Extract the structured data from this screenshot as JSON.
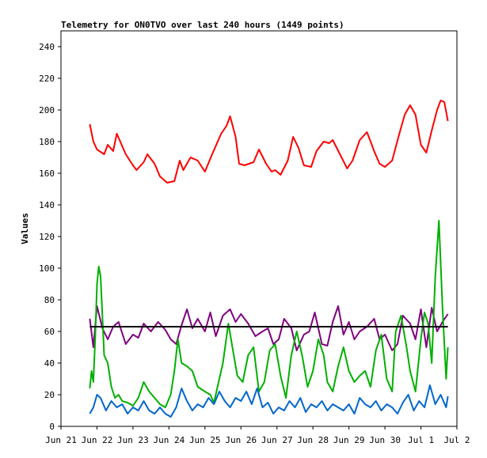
{
  "chart_data": {
    "type": "line",
    "title": "Telemetry for ON0TVO over last 240 hours (1449 points)",
    "xlabel": "",
    "ylabel": "Values",
    "ylim": [
      0,
      250
    ],
    "yticks": [
      0,
      20,
      40,
      60,
      80,
      100,
      120,
      140,
      160,
      180,
      200,
      220,
      240
    ],
    "xlim": [
      "2024-06-21",
      "2024-07-02"
    ],
    "xticks": [
      "Jun 21",
      "Jun 22",
      "Jun 23",
      "Jun 24",
      "Jun 25",
      "Jun 26",
      "Jun 27",
      "Jun 28",
      "Jun 29",
      "Jun 30",
      "Jul 1",
      "Jul 2"
    ],
    "grid": false,
    "legend": "none",
    "series": [
      {
        "color": "#ff0000",
        "x": [
          21.8,
          21.9,
          22.0,
          22.2,
          22.3,
          22.45,
          22.55,
          22.8,
          23.0,
          23.1,
          23.3,
          23.4,
          23.6,
          23.75,
          23.95,
          24.15,
          24.3,
          24.4,
          24.6,
          24.8,
          25.0,
          25.2,
          25.45,
          25.6,
          25.7,
          25.85,
          25.95,
          26.1,
          26.35,
          26.5,
          26.7,
          26.85,
          26.95,
          27.1,
          27.3,
          27.45,
          27.6,
          27.75,
          27.95,
          28.1,
          28.3,
          28.45,
          28.55,
          28.75,
          28.95,
          29.1,
          29.3,
          29.5,
          29.7,
          29.85,
          30.0,
          30.2,
          30.4,
          30.55,
          30.7,
          30.85,
          31.0,
          31.15,
          31.3,
          31.45,
          31.55,
          31.65,
          31.75
        ],
        "y": [
          191,
          180,
          175,
          172,
          178,
          174,
          185,
          172,
          165,
          162,
          167,
          172,
          166,
          158,
          154,
          155,
          168,
          162,
          170,
          168,
          161,
          172,
          185,
          190,
          196,
          183,
          166,
          165,
          167,
          175,
          166,
          161,
          162,
          159,
          168,
          183,
          176,
          165,
          164,
          174,
          180,
          179,
          181,
          172,
          163,
          168,
          181,
          186,
          174,
          166,
          164,
          168,
          185,
          197,
          203,
          197,
          178,
          173,
          187,
          200,
          206,
          205,
          193
        ]
      },
      {
        "color": "#800080",
        "x": [
          21.8,
          21.9,
          22.0,
          22.15,
          22.3,
          22.45,
          22.6,
          22.8,
          23.0,
          23.15,
          23.3,
          23.5,
          23.7,
          23.9,
          24.05,
          24.2,
          24.35,
          24.5,
          24.65,
          24.8,
          25.0,
          25.15,
          25.3,
          25.5,
          25.7,
          25.85,
          26.0,
          26.2,
          26.4,
          26.6,
          26.75,
          26.9,
          27.05,
          27.2,
          27.4,
          27.55,
          27.75,
          27.9,
          28.05,
          28.25,
          28.4,
          28.55,
          28.7,
          28.85,
          29.0,
          29.15,
          29.3,
          29.5,
          29.7,
          29.85,
          30.0,
          30.2,
          30.35,
          30.5,
          30.7,
          30.85,
          31.0,
          31.15,
          31.3,
          31.45,
          31.6,
          31.75
        ],
        "y": [
          68,
          50,
          76,
          62,
          55,
          63,
          66,
          52,
          58,
          56,
          65,
          60,
          66,
          61,
          55,
          52,
          64,
          74,
          62,
          68,
          60,
          72,
          57,
          70,
          74,
          66,
          71,
          65,
          57,
          60,
          62,
          52,
          55,
          68,
          62,
          48,
          58,
          60,
          72,
          52,
          51,
          66,
          76,
          58,
          66,
          55,
          60,
          63,
          68,
          55,
          58,
          48,
          52,
          70,
          65,
          55,
          74,
          50,
          75,
          60,
          66,
          71
        ]
      },
      {
        "color": "#00b000",
        "x": [
          21.8,
          21.85,
          21.9,
          21.95,
          22.0,
          22.05,
          22.1,
          22.15,
          22.2,
          22.3,
          22.4,
          22.5,
          22.6,
          22.7,
          22.85,
          23.0,
          23.15,
          23.3,
          23.45,
          23.6,
          23.75,
          23.9,
          24.05,
          24.15,
          24.25,
          24.35,
          24.5,
          24.65,
          24.8,
          25.0,
          25.15,
          25.25,
          25.35,
          25.5,
          25.65,
          25.8,
          25.9,
          26.05,
          26.2,
          26.35,
          26.5,
          26.65,
          26.8,
          26.95,
          27.1,
          27.25,
          27.4,
          27.55,
          27.7,
          27.85,
          28.0,
          28.15,
          28.3,
          28.4,
          28.55,
          28.7,
          28.85,
          29.0,
          29.15,
          29.3,
          29.45,
          29.6,
          29.75,
          29.9,
          30.05,
          30.2,
          30.3,
          30.45,
          30.6,
          30.7,
          30.85,
          31.0,
          31.1,
          31.2,
          31.3,
          31.4,
          31.5,
          31.6,
          31.7,
          31.75
        ],
        "y": [
          24,
          35,
          28,
          55,
          90,
          101,
          95,
          70,
          45,
          40,
          25,
          18,
          20,
          16,
          15,
          13,
          18,
          28,
          22,
          18,
          14,
          12,
          20,
          35,
          55,
          40,
          38,
          35,
          25,
          22,
          20,
          15,
          25,
          40,
          65,
          45,
          32,
          28,
          45,
          50,
          22,
          28,
          48,
          52,
          32,
          18,
          45,
          60,
          45,
          25,
          35,
          55,
          45,
          28,
          22,
          38,
          50,
          35,
          28,
          32,
          35,
          25,
          48,
          58,
          30,
          22,
          60,
          70,
          50,
          35,
          22,
          55,
          72,
          65,
          40,
          95,
          130,
          75,
          30,
          50
        ]
      },
      {
        "color": "#0066cc",
        "x": [
          21.8,
          21.9,
          22.0,
          22.1,
          22.25,
          22.4,
          22.55,
          22.7,
          22.85,
          23.0,
          23.15,
          23.3,
          23.45,
          23.6,
          23.75,
          23.9,
          24.05,
          24.2,
          24.35,
          24.5,
          24.65,
          24.8,
          24.95,
          25.1,
          25.25,
          25.4,
          25.55,
          25.7,
          25.85,
          26.0,
          26.15,
          26.3,
          26.45,
          26.6,
          26.75,
          26.9,
          27.05,
          27.2,
          27.35,
          27.5,
          27.65,
          27.8,
          27.95,
          28.1,
          28.25,
          28.4,
          28.55,
          28.7,
          28.85,
          29.0,
          29.15,
          29.3,
          29.45,
          29.6,
          29.75,
          29.9,
          30.05,
          30.2,
          30.35,
          30.5,
          30.65,
          30.8,
          30.95,
          31.1,
          31.25,
          31.4,
          31.55,
          31.7,
          31.75
        ],
        "y": [
          8,
          12,
          20,
          18,
          10,
          16,
          12,
          14,
          8,
          12,
          10,
          16,
          10,
          8,
          12,
          8,
          6,
          12,
          24,
          16,
          10,
          14,
          12,
          18,
          14,
          22,
          16,
          12,
          18,
          16,
          22,
          14,
          24,
          12,
          15,
          8,
          12,
          10,
          16,
          12,
          18,
          9,
          14,
          12,
          16,
          10,
          14,
          12,
          10,
          14,
          8,
          18,
          14,
          12,
          16,
          10,
          14,
          12,
          8,
          15,
          20,
          10,
          16,
          12,
          26,
          14,
          20,
          12,
          19
        ]
      },
      {
        "color": "#000000",
        "x": [
          21.8,
          31.75
        ],
        "y": [
          63,
          63
        ]
      }
    ]
  }
}
